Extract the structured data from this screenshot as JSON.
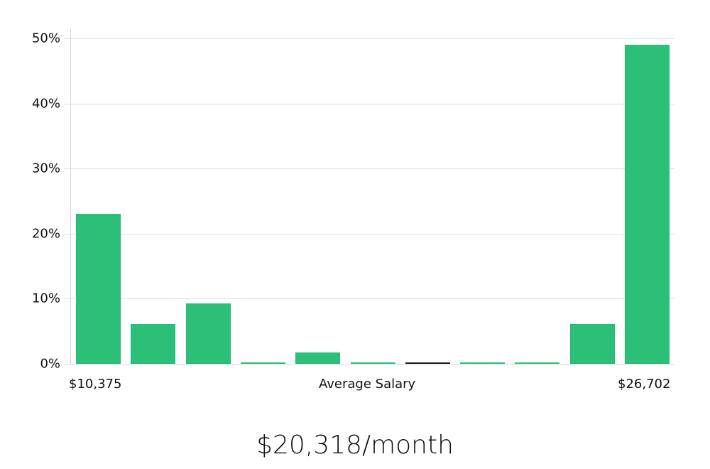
{
  "chart_data": {
    "type": "bar",
    "title": "",
    "xlabel": "Average Salary",
    "ylabel": "",
    "ylim": [
      0,
      50
    ],
    "yticks": [
      "0%",
      "10%",
      "20%",
      "30%",
      "40%",
      "50%"
    ],
    "grid": true,
    "x_range_labels": {
      "min": "$10,375",
      "max": "$26,702"
    },
    "categories": [
      "bin1",
      "bin2",
      "bin3",
      "bin4",
      "bin5",
      "bin6",
      "bin7",
      "bin8",
      "bin9",
      "bin10",
      "bin11"
    ],
    "values": [
      23.0,
      6.1,
      9.3,
      0,
      1.7,
      0,
      0,
      0,
      0,
      6.1,
      49.0
    ],
    "highlight_bin_index": 6,
    "colors": {
      "bar": "#2bbf78",
      "highlight": "#1a1a2e",
      "grid": "#dcdcdc"
    }
  },
  "labels": {
    "x_min": "$10,375",
    "x_center": "Average Salary",
    "x_max": "$26,702",
    "headline": "$20,318/month"
  }
}
